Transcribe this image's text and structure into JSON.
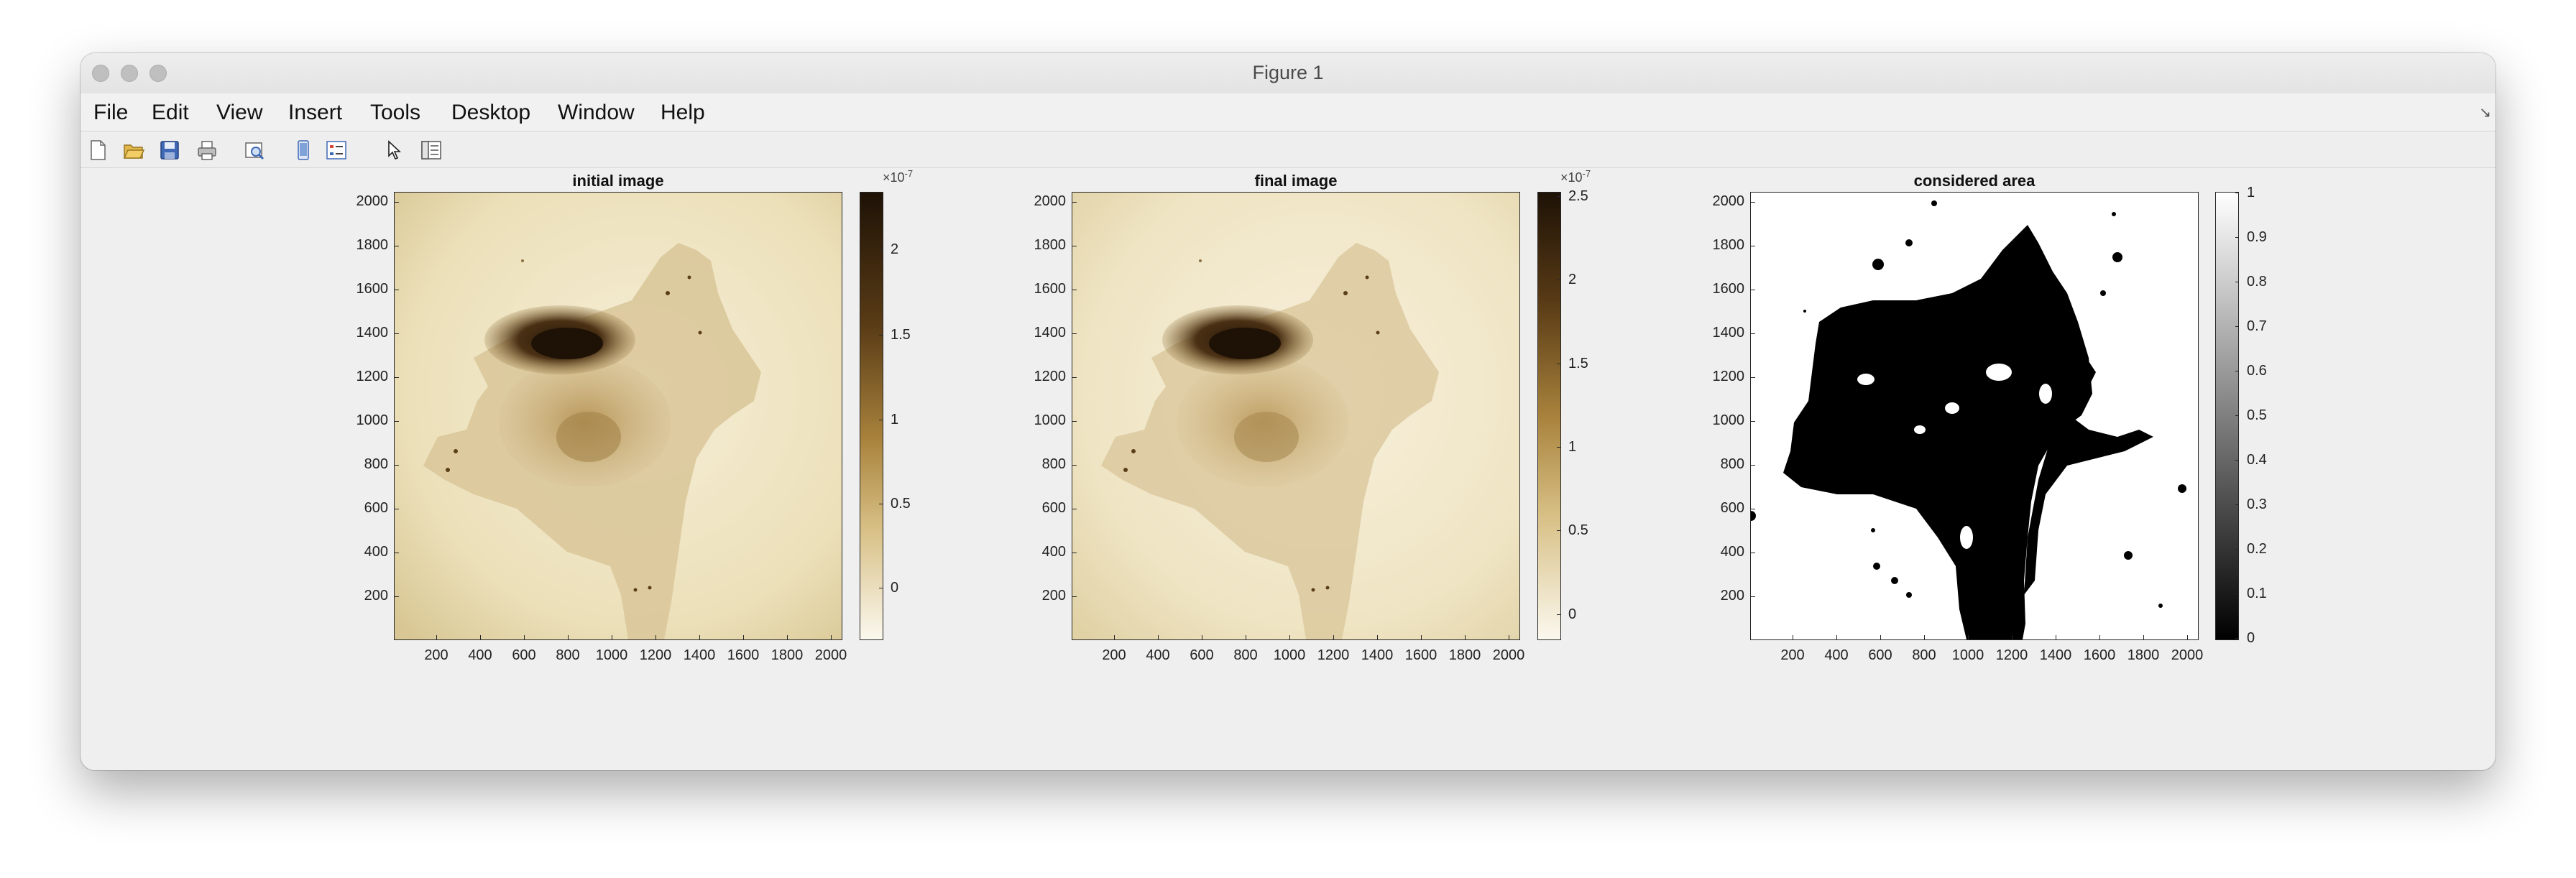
{
  "window": {
    "title": "Figure 1"
  },
  "menu": [
    "File",
    "Edit",
    "View",
    "Insert",
    "Tools",
    "Desktop",
    "Window",
    "Help"
  ],
  "toolbar": [
    {
      "icon": "new-figure-icon"
    },
    {
      "icon": "open-file-icon"
    },
    {
      "icon": "save-icon"
    },
    {
      "icon": "print-icon"
    },
    {
      "icon": "print-preview-icon"
    },
    {
      "icon": "link-plot-icon"
    },
    {
      "icon": "insert-legend-icon"
    },
    {
      "icon": "edit-plot-arrow-icon"
    },
    {
      "icon": "property-inspector-icon"
    }
  ],
  "plots": [
    {
      "title": "initial image",
      "colormap": "sepia",
      "colorbar_exponent": "×10",
      "colorbar_exponent_power": "-7",
      "colorbar_ticks": [
        "2",
        "1.5",
        "1",
        "0.5",
        "0"
      ]
    },
    {
      "title": "final image",
      "colormap": "sepia",
      "colorbar_exponent": "×10",
      "colorbar_exponent_power": "-7",
      "colorbar_ticks": [
        "2.5",
        "2",
        "1.5",
        "1",
        "0.5",
        "0"
      ]
    },
    {
      "title": "considered area",
      "colormap": "gray",
      "colorbar_exponent": "",
      "colorbar_exponent_power": "",
      "colorbar_ticks": [
        "1",
        "0.9",
        "0.8",
        "0.7",
        "0.6",
        "0.5",
        "0.4",
        "0.3",
        "0.2",
        "0.1",
        "0"
      ]
    }
  ],
  "axes": {
    "y_ticks": [
      "2000",
      "1800",
      "1600",
      "1400",
      "1200",
      "1000",
      "800",
      "600",
      "400",
      "200"
    ],
    "x_ticks": [
      "200",
      "400",
      "600",
      "800",
      "1000",
      "1200",
      "1400",
      "1600",
      "1800",
      "2000"
    ]
  },
  "colors": {
    "sepia_dark": "#1e1206",
    "sepia_light": "#fbf8ee",
    "sepia_mid": "#b89650",
    "mask_black": "#000000",
    "mask_white": "#ffffff"
  }
}
